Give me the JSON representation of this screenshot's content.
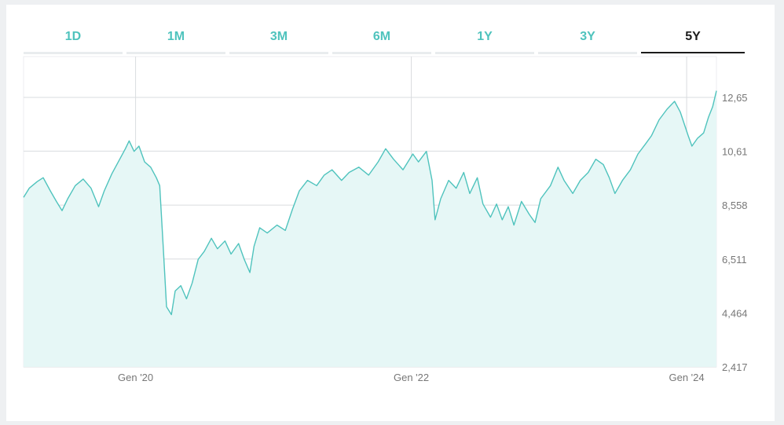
{
  "tabs": [
    {
      "label": "1D",
      "active": false
    },
    {
      "label": "1M",
      "active": false
    },
    {
      "label": "3M",
      "active": false
    },
    {
      "label": "6M",
      "active": false
    },
    {
      "label": "1Y",
      "active": false
    },
    {
      "label": "3Y",
      "active": false
    },
    {
      "label": "5Y",
      "active": true
    }
  ],
  "colors": {
    "accent": "#4fc3bd",
    "fill": "#e6f7f6",
    "grid": "#d9dcdf",
    "active_tab": "#1b1b1b"
  },
  "chart_data": {
    "type": "area",
    "title": "",
    "xlabel": "",
    "ylabel": "",
    "x_ticks": [
      {
        "label": "Gen '20",
        "date": "2020-01-01"
      },
      {
        "label": "Gen '22",
        "date": "2022-01-01"
      },
      {
        "label": "Gen '24",
        "date": "2024-01-01"
      }
    ],
    "y_ticks": [
      "12,65",
      "10,61",
      "8,558",
      "6,511",
      "4,464",
      "2,417"
    ],
    "y_tick_values": [
      12.65,
      10.61,
      8.558,
      6.511,
      4.464,
      2.417
    ],
    "ylim": [
      2.417,
      14.2
    ],
    "xlim": [
      "2019-03-10",
      "2024-03-20"
    ],
    "grid": true,
    "series": [
      {
        "values": [
          [
            "2019-03-10",
            8.85
          ],
          [
            "2019-03-25",
            9.2
          ],
          [
            "2019-04-15",
            9.45
          ],
          [
            "2019-05-01",
            9.6
          ],
          [
            "2019-05-20",
            9.1
          ],
          [
            "2019-06-05",
            8.7
          ],
          [
            "2019-06-20",
            8.35
          ],
          [
            "2019-07-05",
            8.8
          ],
          [
            "2019-07-25",
            9.3
          ],
          [
            "2019-08-15",
            9.55
          ],
          [
            "2019-09-05",
            9.2
          ],
          [
            "2019-09-25",
            8.5
          ],
          [
            "2019-10-10",
            9.1
          ],
          [
            "2019-10-30",
            9.75
          ],
          [
            "2019-11-20",
            10.3
          ],
          [
            "2019-12-05",
            10.7
          ],
          [
            "2019-12-15",
            11.0
          ],
          [
            "2019-12-28",
            10.6
          ],
          [
            "2020-01-10",
            10.8
          ],
          [
            "2020-01-25",
            10.2
          ],
          [
            "2020-02-10",
            10.0
          ],
          [
            "2020-02-25",
            9.6
          ],
          [
            "2020-03-05",
            9.3
          ],
          [
            "2020-03-15",
            6.8
          ],
          [
            "2020-03-23",
            4.7
          ],
          [
            "2020-04-05",
            4.4
          ],
          [
            "2020-04-15",
            5.3
          ],
          [
            "2020-04-30",
            5.5
          ],
          [
            "2020-05-15",
            5.0
          ],
          [
            "2020-05-30",
            5.6
          ],
          [
            "2020-06-15",
            6.5
          ],
          [
            "2020-07-01",
            6.8
          ],
          [
            "2020-07-20",
            7.3
          ],
          [
            "2020-08-05",
            6.9
          ],
          [
            "2020-08-25",
            7.2
          ],
          [
            "2020-09-10",
            6.7
          ],
          [
            "2020-09-30",
            7.1
          ],
          [
            "2020-10-15",
            6.5
          ],
          [
            "2020-10-30",
            6.0
          ],
          [
            "2020-11-10",
            7.0
          ],
          [
            "2020-11-25",
            7.7
          ],
          [
            "2020-12-15",
            7.5
          ],
          [
            "2021-01-10",
            7.8
          ],
          [
            "2021-02-01",
            7.6
          ],
          [
            "2021-02-20",
            8.4
          ],
          [
            "2021-03-10",
            9.1
          ],
          [
            "2021-04-01",
            9.5
          ],
          [
            "2021-04-25",
            9.3
          ],
          [
            "2021-05-15",
            9.7
          ],
          [
            "2021-06-05",
            9.9
          ],
          [
            "2021-06-30",
            9.5
          ],
          [
            "2021-07-20",
            9.8
          ],
          [
            "2021-08-15",
            10.0
          ],
          [
            "2021-09-10",
            9.7
          ],
          [
            "2021-10-05",
            10.2
          ],
          [
            "2021-10-25",
            10.7
          ],
          [
            "2021-11-15",
            10.3
          ],
          [
            "2021-12-10",
            9.9
          ],
          [
            "2022-01-05",
            10.5
          ],
          [
            "2022-01-20",
            10.2
          ],
          [
            "2022-02-10",
            10.6
          ],
          [
            "2022-02-25",
            9.5
          ],
          [
            "2022-03-05",
            8.0
          ],
          [
            "2022-03-20",
            8.8
          ],
          [
            "2022-04-10",
            9.5
          ],
          [
            "2022-04-30",
            9.2
          ],
          [
            "2022-05-20",
            9.8
          ],
          [
            "2022-06-05",
            9.0
          ],
          [
            "2022-06-25",
            9.6
          ],
          [
            "2022-07-10",
            8.6
          ],
          [
            "2022-07-30",
            8.1
          ],
          [
            "2022-08-15",
            8.6
          ],
          [
            "2022-08-30",
            8.0
          ],
          [
            "2022-09-15",
            8.5
          ],
          [
            "2022-09-30",
            7.8
          ],
          [
            "2022-10-20",
            8.7
          ],
          [
            "2022-11-10",
            8.2
          ],
          [
            "2022-11-25",
            7.9
          ],
          [
            "2022-12-10",
            8.8
          ],
          [
            "2023-01-05",
            9.3
          ],
          [
            "2023-01-25",
            10.0
          ],
          [
            "2023-02-10",
            9.5
          ],
          [
            "2023-03-05",
            9.0
          ],
          [
            "2023-03-25",
            9.5
          ],
          [
            "2023-04-15",
            9.8
          ],
          [
            "2023-05-05",
            10.3
          ],
          [
            "2023-05-25",
            10.1
          ],
          [
            "2023-06-10",
            9.6
          ],
          [
            "2023-06-25",
            9.0
          ],
          [
            "2023-07-15",
            9.5
          ],
          [
            "2023-08-05",
            9.9
          ],
          [
            "2023-08-25",
            10.5
          ],
          [
            "2023-09-15",
            10.9
          ],
          [
            "2023-09-30",
            11.2
          ],
          [
            "2023-10-20",
            11.8
          ],
          [
            "2023-11-10",
            12.2
          ],
          [
            "2023-11-30",
            12.5
          ],
          [
            "2023-12-15",
            12.1
          ],
          [
            "2024-01-05",
            11.2
          ],
          [
            "2024-01-15",
            10.8
          ],
          [
            "2024-01-30",
            11.1
          ],
          [
            "2024-02-15",
            11.3
          ],
          [
            "2024-02-28",
            11.9
          ],
          [
            "2024-03-10",
            12.3
          ],
          [
            "2024-03-20",
            12.9
          ]
        ]
      }
    ]
  }
}
